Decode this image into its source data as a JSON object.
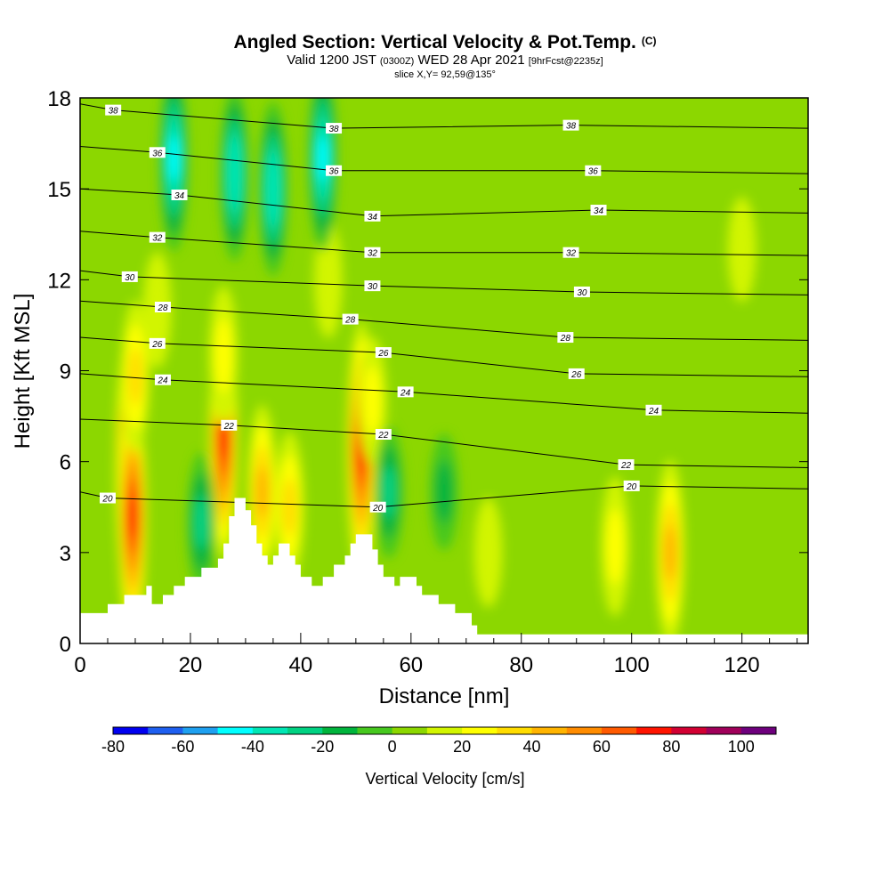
{
  "chart_data": {
    "type": "heatmap",
    "title": "Angled Section: Vertical Velocity & Pot.Temp.",
    "title_unit": "(C)",
    "subtitle": {
      "valid": "Valid 1200 JST",
      "utc": "(0300Z)",
      "date": "WED 28 Apr 2021",
      "forecast": "[9hrFcst@2235z]"
    },
    "slice_label": "slice X,Y= 92,59@135°",
    "xlabel": "Distance [nm]",
    "ylabel": "Height [Kft MSL]",
    "xlim": [
      0,
      132
    ],
    "ylim": [
      0,
      18
    ],
    "x_ticks": [
      0,
      20,
      40,
      60,
      80,
      100,
      120
    ],
    "y_ticks": [
      0,
      3,
      6,
      9,
      12,
      15,
      18
    ],
    "colorbar": {
      "label": "Vertical Velocity [cm/s]",
      "ticks": [
        -80,
        -60,
        -40,
        -20,
        0,
        20,
        40,
        60,
        80,
        100
      ],
      "bins": [
        -80,
        -70,
        -60,
        -50,
        -40,
        -30,
        -20,
        -10,
        0,
        10,
        20,
        30,
        40,
        50,
        60,
        70,
        80,
        90,
        100,
        110
      ],
      "colors": [
        "#0000f0",
        "#1e5ff0",
        "#1ea0f0",
        "#00ffff",
        "#00e6b4",
        "#00d282",
        "#00b43c",
        "#46c81e",
        "#8cd700",
        "#d2f500",
        "#ffff00",
        "#ffdc00",
        "#ffb400",
        "#ff8c00",
        "#ff5a00",
        "#ff1400",
        "#d20032",
        "#a0005a",
        "#6e007d"
      ]
    },
    "vertical_velocity_cells": [
      {
        "x": 9,
        "y": 5.8,
        "w": 85
      },
      {
        "x": 9.5,
        "y": 4.2,
        "w": 70
      },
      {
        "x": 10,
        "y": 8.8,
        "w": 30
      },
      {
        "x": 14,
        "y": 11.0,
        "w": 15
      },
      {
        "x": 26,
        "y": 6.8,
        "w": 70
      },
      {
        "x": 26,
        "y": 9.5,
        "w": 25
      },
      {
        "x": 33,
        "y": 5.0,
        "w": 40
      },
      {
        "x": 38,
        "y": 4.5,
        "w": 30
      },
      {
        "x": 45,
        "y": 12.0,
        "w": 15
      },
      {
        "x": 51,
        "y": 6.4,
        "w": 75
      },
      {
        "x": 53,
        "y": 8.0,
        "w": 20
      },
      {
        "x": 74,
        "y": 3.0,
        "w": 12
      },
      {
        "x": 97,
        "y": 3.2,
        "w": 25
      },
      {
        "x": 107,
        "y": 3.0,
        "w": 45
      },
      {
        "x": 17,
        "y": 16.0,
        "w": -45
      },
      {
        "x": 28,
        "y": 15.5,
        "w": -40
      },
      {
        "x": 35,
        "y": 15.0,
        "w": -40
      },
      {
        "x": 44,
        "y": 16.0,
        "w": -45
      },
      {
        "x": 22,
        "y": 4.0,
        "w": -25
      },
      {
        "x": 56,
        "y": 5.0,
        "w": -22
      },
      {
        "x": 66,
        "y": 5.0,
        "w": -15
      },
      {
        "x": 120,
        "y": 13.0,
        "w": 10
      }
    ],
    "pot_temp_contours": [
      20,
      22,
      24,
      26,
      28,
      30,
      32,
      34,
      36,
      38
    ],
    "pot_temp_labels": [
      {
        "v": "38",
        "x": 6.0,
        "y": 17.6
      },
      {
        "v": "38",
        "x": 46.0,
        "y": 17.0
      },
      {
        "v": "38",
        "x": 89.0,
        "y": 17.1
      },
      {
        "v": "36",
        "x": 14.0,
        "y": 16.2
      },
      {
        "v": "36",
        "x": 46.0,
        "y": 15.6
      },
      {
        "v": "36",
        "x": 93.0,
        "y": 15.6
      },
      {
        "v": "34",
        "x": 18.0,
        "y": 14.8
      },
      {
        "v": "34",
        "x": 53.0,
        "y": 14.1
      },
      {
        "v": "34",
        "x": 94.0,
        "y": 14.3
      },
      {
        "v": "32",
        "x": 14.0,
        "y": 13.4
      },
      {
        "v": "32",
        "x": 53.0,
        "y": 12.9
      },
      {
        "v": "32",
        "x": 89.0,
        "y": 12.9
      },
      {
        "v": "30",
        "x": 9.0,
        "y": 12.1
      },
      {
        "v": "30",
        "x": 53.0,
        "y": 11.8
      },
      {
        "v": "30",
        "x": 91.0,
        "y": 11.6
      },
      {
        "v": "28",
        "x": 15.0,
        "y": 11.1
      },
      {
        "v": "28",
        "x": 49.0,
        "y": 10.7
      },
      {
        "v": "28",
        "x": 88.0,
        "y": 10.1
      },
      {
        "v": "26",
        "x": 14.0,
        "y": 9.9
      },
      {
        "v": "26",
        "x": 55.0,
        "y": 9.6
      },
      {
        "v": "26",
        "x": 90.0,
        "y": 8.9
      },
      {
        "v": "24",
        "x": 15.0,
        "y": 8.7
      },
      {
        "v": "24",
        "x": 59.0,
        "y": 8.3
      },
      {
        "v": "24",
        "x": 104.0,
        "y": 7.7
      },
      {
        "v": "22",
        "x": 27.0,
        "y": 7.2
      },
      {
        "v": "22",
        "x": 55.0,
        "y": 6.9
      },
      {
        "v": "22",
        "x": 99.0,
        "y": 5.9
      },
      {
        "v": "20",
        "x": 5.0,
        "y": 4.8
      },
      {
        "v": "20",
        "x": 54.0,
        "y": 4.5
      },
      {
        "v": "20",
        "x": 100.0,
        "y": 5.2
      }
    ],
    "terrain": [
      [
        0,
        1.0
      ],
      [
        5,
        1.0
      ],
      [
        5,
        1.3
      ],
      [
        8,
        1.3
      ],
      [
        8,
        1.6
      ],
      [
        12,
        1.6
      ],
      [
        12,
        1.9
      ],
      [
        13,
        1.9
      ],
      [
        13,
        1.3
      ],
      [
        15,
        1.3
      ],
      [
        15,
        1.6
      ],
      [
        17,
        1.6
      ],
      [
        17,
        1.9
      ],
      [
        19,
        1.9
      ],
      [
        19,
        2.2
      ],
      [
        22,
        2.2
      ],
      [
        22,
        2.5
      ],
      [
        25,
        2.5
      ],
      [
        25,
        2.8
      ],
      [
        26,
        2.8
      ],
      [
        26,
        3.3
      ],
      [
        27,
        3.3
      ],
      [
        27,
        4.2
      ],
      [
        28,
        4.2
      ],
      [
        28,
        4.8
      ],
      [
        30,
        4.8
      ],
      [
        30,
        4.4
      ],
      [
        31,
        4.4
      ],
      [
        31,
        3.9
      ],
      [
        32,
        3.9
      ],
      [
        32,
        3.3
      ],
      [
        33,
        3.3
      ],
      [
        33,
        2.9
      ],
      [
        34,
        2.9
      ],
      [
        34,
        2.6
      ],
      [
        35,
        2.6
      ],
      [
        35,
        2.9
      ],
      [
        36,
        2.9
      ],
      [
        36,
        3.3
      ],
      [
        38,
        3.3
      ],
      [
        38,
        2.9
      ],
      [
        39,
        2.9
      ],
      [
        39,
        2.6
      ],
      [
        40,
        2.6
      ],
      [
        40,
        2.2
      ],
      [
        42,
        2.2
      ],
      [
        42,
        1.9
      ],
      [
        44,
        1.9
      ],
      [
        44,
        2.2
      ],
      [
        46,
        2.2
      ],
      [
        46,
        2.6
      ],
      [
        48,
        2.6
      ],
      [
        48,
        2.9
      ],
      [
        49,
        2.9
      ],
      [
        49,
        3.3
      ],
      [
        50,
        3.3
      ],
      [
        50,
        3.6
      ],
      [
        53,
        3.6
      ],
      [
        53,
        3.1
      ],
      [
        54,
        3.1
      ],
      [
        54,
        2.6
      ],
      [
        55,
        2.6
      ],
      [
        55,
        2.2
      ],
      [
        57,
        2.2
      ],
      [
        57,
        1.9
      ],
      [
        58,
        1.9
      ],
      [
        58,
        2.2
      ],
      [
        61,
        2.2
      ],
      [
        61,
        1.9
      ],
      [
        62,
        1.9
      ],
      [
        62,
        1.6
      ],
      [
        65,
        1.6
      ],
      [
        65,
        1.3
      ],
      [
        68,
        1.3
      ],
      [
        68,
        1.0
      ],
      [
        71,
        1.0
      ],
      [
        71,
        0.6
      ],
      [
        72,
        0.6
      ],
      [
        72,
        0.3
      ],
      [
        132,
        0.3
      ]
    ]
  }
}
